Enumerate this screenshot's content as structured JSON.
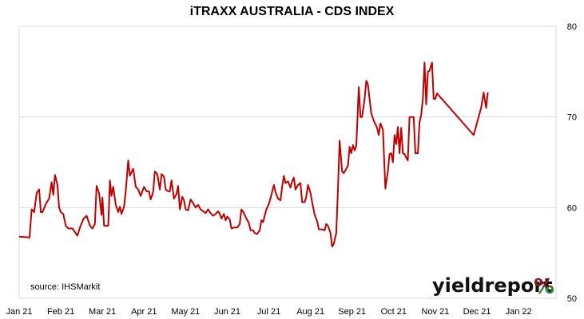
{
  "chart_data": {
    "type": "line",
    "title": "iTRAXX AUSTRALIA - CDS INDEX",
    "source": "source: IHSMarkit",
    "brand": {
      "text": "yieldreport",
      "symbol": "%",
      "colors": {
        "top": "#8B1A1A",
        "bottom": "#2E8B3A"
      }
    },
    "line_color": "#C00000",
    "grid": true,
    "y_axis": {
      "position": "right",
      "ylim": [
        50,
        80
      ],
      "ticks": [
        50,
        60,
        70,
        80
      ]
    },
    "x_axis": {
      "range": [
        0,
        12.9
      ],
      "ticks": [
        {
          "label": "Jan 21",
          "pos": 0
        },
        {
          "label": "Feb 21",
          "pos": 1
        },
        {
          "label": "Mar 21",
          "pos": 2
        },
        {
          "label": "Apr 21",
          "pos": 3
        },
        {
          "label": "May 21",
          "pos": 4
        },
        {
          "label": "Jun 21",
          "pos": 5
        },
        {
          "label": "Jul 21",
          "pos": 6
        },
        {
          "label": "Aug 21",
          "pos": 7
        },
        {
          "label": "Sep 21",
          "pos": 8
        },
        {
          "label": "Oct 21",
          "pos": 9
        },
        {
          "label": "Nov 21",
          "pos": 10
        },
        {
          "label": "Dec 21",
          "pos": 11
        },
        {
          "label": "Jan 22",
          "pos": 12
        }
      ]
    },
    "series": [
      {
        "points": [
          [
            0.0,
            56.8
          ],
          [
            0.25,
            56.7
          ],
          [
            0.3,
            59.8
          ],
          [
            0.36,
            59.5
          ],
          [
            0.42,
            61.6
          ],
          [
            0.48,
            62.0
          ],
          [
            0.52,
            59.5
          ],
          [
            0.56,
            59.5
          ],
          [
            0.65,
            60.5
          ],
          [
            0.72,
            61.0
          ],
          [
            0.78,
            62.8
          ],
          [
            0.82,
            61.4
          ],
          [
            0.86,
            63.6
          ],
          [
            0.92,
            62.5
          ],
          [
            0.96,
            60.0
          ],
          [
            1.0,
            59.5
          ],
          [
            1.06,
            59.3
          ],
          [
            1.12,
            58.0
          ],
          [
            1.18,
            57.7
          ],
          [
            1.28,
            57.7
          ],
          [
            1.4,
            56.9
          ],
          [
            1.46,
            57.8
          ],
          [
            1.55,
            58.8
          ],
          [
            1.62,
            59.1
          ],
          [
            1.7,
            58.0
          ],
          [
            1.76,
            57.7
          ],
          [
            1.82,
            58.2
          ],
          [
            1.86,
            62.4
          ],
          [
            1.92,
            61.6
          ],
          [
            1.98,
            59.2
          ],
          [
            2.0,
            61.1
          ],
          [
            2.04,
            58.0
          ],
          [
            2.14,
            58.0
          ],
          [
            2.18,
            63.0
          ],
          [
            2.22,
            61.3
          ],
          [
            2.26,
            62.3
          ],
          [
            2.32,
            60.3
          ],
          [
            2.38,
            59.5
          ],
          [
            2.42,
            60.1
          ],
          [
            2.46,
            59.3
          ],
          [
            2.52,
            60.1
          ],
          [
            2.56,
            61.8
          ],
          [
            2.62,
            65.2
          ],
          [
            2.66,
            63.5
          ],
          [
            2.74,
            64.3
          ],
          [
            2.8,
            62.3
          ],
          [
            2.86,
            62.0
          ],
          [
            2.92,
            61.3
          ],
          [
            3.0,
            62.3
          ],
          [
            3.06,
            61.8
          ],
          [
            3.12,
            61.8
          ],
          [
            3.16,
            60.9
          ],
          [
            3.22,
            61.7
          ],
          [
            3.26,
            64.0
          ],
          [
            3.32,
            63.7
          ],
          [
            3.38,
            62.0
          ],
          [
            3.42,
            63.7
          ],
          [
            3.48,
            63.4
          ],
          [
            3.52,
            62.0
          ],
          [
            3.58,
            61.8
          ],
          [
            3.62,
            61.8
          ],
          [
            3.66,
            63.0
          ],
          [
            3.72,
            61.0
          ],
          [
            3.78,
            61.5
          ],
          [
            3.82,
            62.4
          ],
          [
            3.86,
            59.8
          ],
          [
            3.92,
            61.2
          ],
          [
            3.96,
            60.8
          ],
          [
            4.0,
            59.8
          ],
          [
            4.06,
            59.7
          ],
          [
            4.12,
            60.9
          ],
          [
            4.18,
            60.5
          ],
          [
            4.24,
            60.0
          ],
          [
            4.3,
            60.3
          ],
          [
            4.36,
            59.8
          ],
          [
            4.42,
            59.6
          ],
          [
            4.48,
            59.4
          ],
          [
            4.54,
            59.8
          ],
          [
            4.6,
            59.4
          ],
          [
            4.66,
            59.1
          ],
          [
            4.72,
            59.3
          ],
          [
            4.78,
            59.6
          ],
          [
            4.82,
            59.3
          ],
          [
            4.86,
            58.8
          ],
          [
            4.92,
            59.3
          ],
          [
            4.96,
            58.6
          ],
          [
            5.0,
            59.0
          ],
          [
            5.06,
            58.7
          ],
          [
            5.1,
            57.7
          ],
          [
            5.16,
            57.8
          ],
          [
            5.24,
            57.8
          ],
          [
            5.3,
            58.2
          ],
          [
            5.34,
            59.8
          ],
          [
            5.4,
            59.4
          ],
          [
            5.46,
            58.8
          ],
          [
            5.52,
            58.3
          ],
          [
            5.56,
            57.5
          ],
          [
            5.62,
            57.5
          ],
          [
            5.66,
            57.2
          ],
          [
            5.72,
            57.1
          ],
          [
            5.78,
            57.5
          ],
          [
            5.82,
            58.6
          ],
          [
            5.86,
            58.4
          ],
          [
            5.9,
            59.1
          ],
          [
            5.94,
            59.8
          ],
          [
            6.0,
            60.4
          ],
          [
            6.06,
            61.4
          ],
          [
            6.12,
            62.5
          ],
          [
            6.16,
            61.7
          ],
          [
            6.22,
            61.0
          ],
          [
            6.28,
            60.8
          ],
          [
            6.32,
            62.3
          ],
          [
            6.36,
            63.5
          ],
          [
            6.4,
            62.7
          ],
          [
            6.46,
            62.9
          ],
          [
            6.52,
            62.2
          ],
          [
            6.56,
            62.9
          ],
          [
            6.6,
            63.3
          ],
          [
            6.64,
            62.0
          ],
          [
            6.7,
            62.5
          ],
          [
            6.76,
            62.7
          ],
          [
            6.8,
            60.6
          ],
          [
            6.86,
            60.6
          ],
          [
            6.9,
            61.2
          ],
          [
            6.94,
            62.5
          ],
          [
            7.0,
            61.6
          ],
          [
            7.04,
            60.6
          ],
          [
            7.1,
            59.2
          ],
          [
            7.16,
            58.5
          ],
          [
            7.2,
            57.6
          ],
          [
            7.28,
            57.6
          ],
          [
            7.34,
            57.5
          ],
          [
            7.38,
            58.2
          ],
          [
            7.42,
            58.0
          ],
          [
            7.48,
            57.2
          ],
          [
            7.52,
            55.7
          ],
          [
            7.56,
            56.0
          ],
          [
            7.62,
            57.2
          ],
          [
            7.66,
            62.0
          ],
          [
            7.7,
            67.4
          ],
          [
            7.76,
            64.0
          ],
          [
            7.8,
            63.8
          ],
          [
            7.86,
            64.3
          ],
          [
            7.9,
            64.6
          ],
          [
            7.94,
            66.7
          ],
          [
            7.98,
            66.0
          ],
          [
            8.02,
            66.9
          ],
          [
            8.06,
            66.3
          ],
          [
            8.1,
            66.8
          ],
          [
            8.16,
            73.3
          ],
          [
            8.2,
            70.0
          ],
          [
            8.24,
            70.0
          ],
          [
            8.3,
            72.0
          ],
          [
            8.34,
            74.0
          ],
          [
            8.38,
            73.6
          ],
          [
            8.42,
            72.0
          ],
          [
            8.46,
            70.4
          ],
          [
            8.52,
            69.6
          ],
          [
            8.56,
            69.2
          ],
          [
            8.6,
            68.8
          ],
          [
            8.64,
            68.0
          ],
          [
            8.68,
            69.3
          ],
          [
            8.74,
            68.6
          ],
          [
            8.8,
            62.1
          ],
          [
            8.86,
            64.0
          ],
          [
            8.9,
            65.9
          ],
          [
            8.94,
            66.0
          ],
          [
            8.98,
            65.0
          ],
          [
            9.02,
            68.0
          ],
          [
            9.06,
            67.0
          ],
          [
            9.1,
            68.9
          ],
          [
            9.14,
            66.0
          ],
          [
            9.18,
            68.8
          ],
          [
            9.22,
            66.0
          ],
          [
            9.26,
            65.9
          ],
          [
            9.3,
            65.5
          ],
          [
            9.34,
            65.2
          ],
          [
            9.38,
            70.0
          ],
          [
            9.48,
            70.0
          ],
          [
            9.52,
            66.0
          ],
          [
            9.58,
            66.0
          ],
          [
            9.62,
            69.4
          ],
          [
            9.66,
            70.2
          ],
          [
            9.7,
            72.0
          ],
          [
            9.74,
            76.0
          ],
          [
            9.78,
            71.4
          ],
          [
            9.82,
            75.0
          ],
          [
            9.86,
            75.1
          ],
          [
            9.92,
            76.0
          ],
          [
            9.96,
            72.0
          ],
          [
            10.0,
            72.0
          ],
          [
            10.04,
            72.6
          ],
          [
            10.92,
            68.0
          ],
          [
            11.1,
            71.0
          ],
          [
            11.16,
            72.7
          ],
          [
            11.22,
            71.0
          ],
          [
            11.26,
            72.7
          ]
        ]
      }
    ]
  }
}
